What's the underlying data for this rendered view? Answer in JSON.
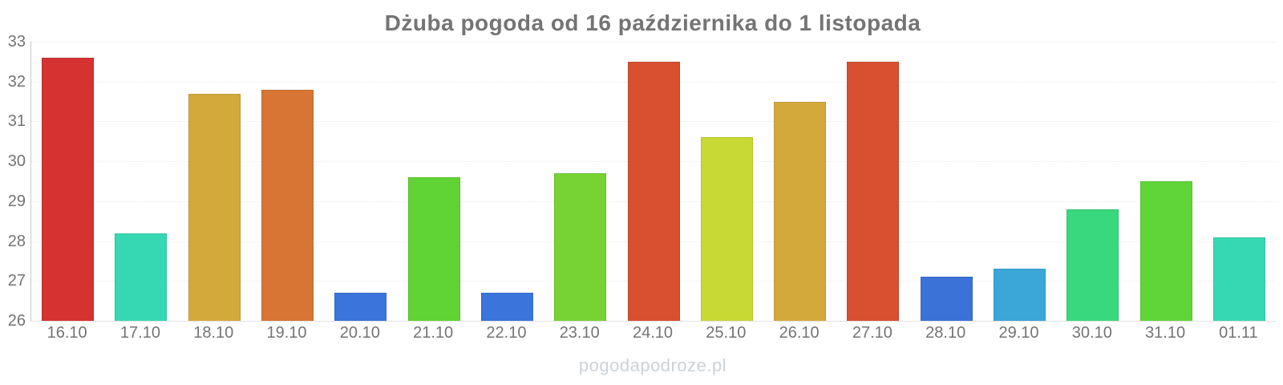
{
  "chart_data": {
    "type": "bar",
    "title": "Dżuba pogoda od 16 października do 1 listopada",
    "categories": [
      "16.10",
      "17.10",
      "18.10",
      "19.10",
      "20.10",
      "21.10",
      "22.10",
      "23.10",
      "24.10",
      "25.10",
      "26.10",
      "27.10",
      "28.10",
      "29.10",
      "30.10",
      "31.10",
      "01.11"
    ],
    "values": [
      32.6,
      28.2,
      31.7,
      31.8,
      26.7,
      29.6,
      26.7,
      29.7,
      32.5,
      30.6,
      31.5,
      32.5,
      27.1,
      27.3,
      28.8,
      29.5,
      28.1
    ],
    "bar_colors": [
      "#d63232",
      "#36d8b3",
      "#d4a93c",
      "#d87434",
      "#3b74da",
      "#60d335",
      "#3b74da",
      "#77d334",
      "#d8502f",
      "#c8d834",
      "#d4a93c",
      "#d8502f",
      "#3b72d8",
      "#3ba6d8",
      "#39d87e",
      "#60d537",
      "#36d8b3"
    ],
    "xlabel": "",
    "ylabel": "",
    "ylim": [
      26,
      33
    ],
    "yticks": [
      26,
      27,
      28,
      29,
      30,
      31,
      32,
      33
    ],
    "grid": true,
    "legend": false
  },
  "footer": {
    "watermark": "pogodapodroze.pl"
  },
  "colors": {
    "title_text": "#747474",
    "axis_text": "#747474",
    "axis_line": "#c9c9c9",
    "baseline": "#e3e3e3",
    "gridline": "rgba(0,0,0,0.08)",
    "watermark_text": "#ccd2d8",
    "background": "#ffffff"
  }
}
